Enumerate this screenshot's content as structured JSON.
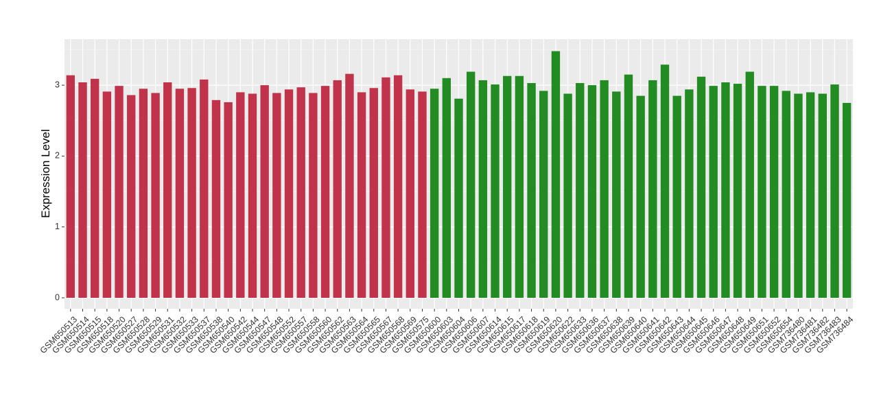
{
  "chart_data": {
    "type": "bar",
    "y_label": "Expression Level",
    "categories": [
      "GSM650513",
      "GSM650514",
      "GSM650515",
      "GSM650518",
      "GSM650520",
      "GSM650527",
      "GSM650528",
      "GSM650529",
      "GSM650531",
      "GSM650532",
      "GSM650533",
      "GSM650537",
      "GSM650538",
      "GSM650540",
      "GSM650542",
      "GSM650544",
      "GSM650547",
      "GSM650548",
      "GSM650552",
      "GSM650557",
      "GSM650558",
      "GSM650560",
      "GSM650562",
      "GSM650563",
      "GSM650564",
      "GSM650565",
      "GSM650567",
      "GSM650568",
      "GSM650569",
      "GSM650575",
      "GSM650600",
      "GSM650603",
      "GSM650604",
      "GSM650606",
      "GSM650607",
      "GSM650614",
      "GSM650615",
      "GSM650617",
      "GSM650618",
      "GSM650619",
      "GSM650620",
      "GSM650622",
      "GSM650633",
      "GSM650636",
      "GSM650637",
      "GSM650638",
      "GSM650639",
      "GSM650640",
      "GSM650641",
      "GSM650642",
      "GSM650643",
      "GSM650644",
      "GSM650645",
      "GSM650646",
      "GSM650647",
      "GSM650648",
      "GSM650649",
      "GSM650651",
      "GSM650652",
      "GSM650654",
      "GSM736480",
      "GSM736481",
      "GSM736482",
      "GSM736483",
      "GSM736484"
    ],
    "values": [
      3.14,
      3.04,
      3.09,
      2.91,
      2.99,
      2.86,
      2.95,
      2.89,
      3.04,
      2.95,
      2.96,
      3.08,
      2.79,
      2.76,
      2.9,
      2.88,
      3.0,
      2.89,
      2.94,
      2.97,
      2.89,
      2.99,
      3.07,
      3.16,
      2.9,
      2.96,
      3.11,
      3.14,
      2.94,
      2.91,
      2.95,
      3.1,
      2.81,
      3.19,
      3.07,
      3.01,
      3.13,
      3.13,
      3.03,
      2.92,
      3.48,
      2.88,
      3.03,
      3.0,
      3.07,
      2.91,
      3.15,
      2.85,
      3.07,
      3.29,
      2.85,
      2.94,
      3.12,
      2.99,
      3.04,
      3.02,
      3.19,
      2.99,
      2.99,
      2.92,
      2.88,
      2.9,
      2.88,
      3.01,
      2.75
    ],
    "colors": [
      "#c0334b",
      "#c0334b",
      "#c0334b",
      "#c0334b",
      "#c0334b",
      "#c0334b",
      "#c0334b",
      "#c0334b",
      "#c0334b",
      "#c0334b",
      "#c0334b",
      "#c0334b",
      "#c0334b",
      "#c0334b",
      "#c0334b",
      "#c0334b",
      "#c0334b",
      "#c0334b",
      "#c0334b",
      "#c0334b",
      "#c0334b",
      "#c0334b",
      "#c0334b",
      "#c0334b",
      "#c0334b",
      "#c0334b",
      "#c0334b",
      "#c0334b",
      "#c0334b",
      "#c0334b",
      "#228b22",
      "#228b22",
      "#228b22",
      "#228b22",
      "#228b22",
      "#228b22",
      "#228b22",
      "#228b22",
      "#228b22",
      "#228b22",
      "#228b22",
      "#228b22",
      "#228b22",
      "#228b22",
      "#228b22",
      "#228b22",
      "#228b22",
      "#228b22",
      "#228b22",
      "#228b22",
      "#228b22",
      "#228b22",
      "#228b22",
      "#228b22",
      "#228b22",
      "#228b22",
      "#228b22",
      "#228b22",
      "#228b22",
      "#228b22",
      "#228b22",
      "#228b22",
      "#228b22",
      "#228b22",
      "#228b22"
    ],
    "ylim": [
      -0.155,
      3.65
    ],
    "yticks": [
      0,
      1,
      2,
      3
    ],
    "minor_yticks": [
      0.5,
      1.5,
      2.5,
      3.5
    ],
    "grid": true
  }
}
